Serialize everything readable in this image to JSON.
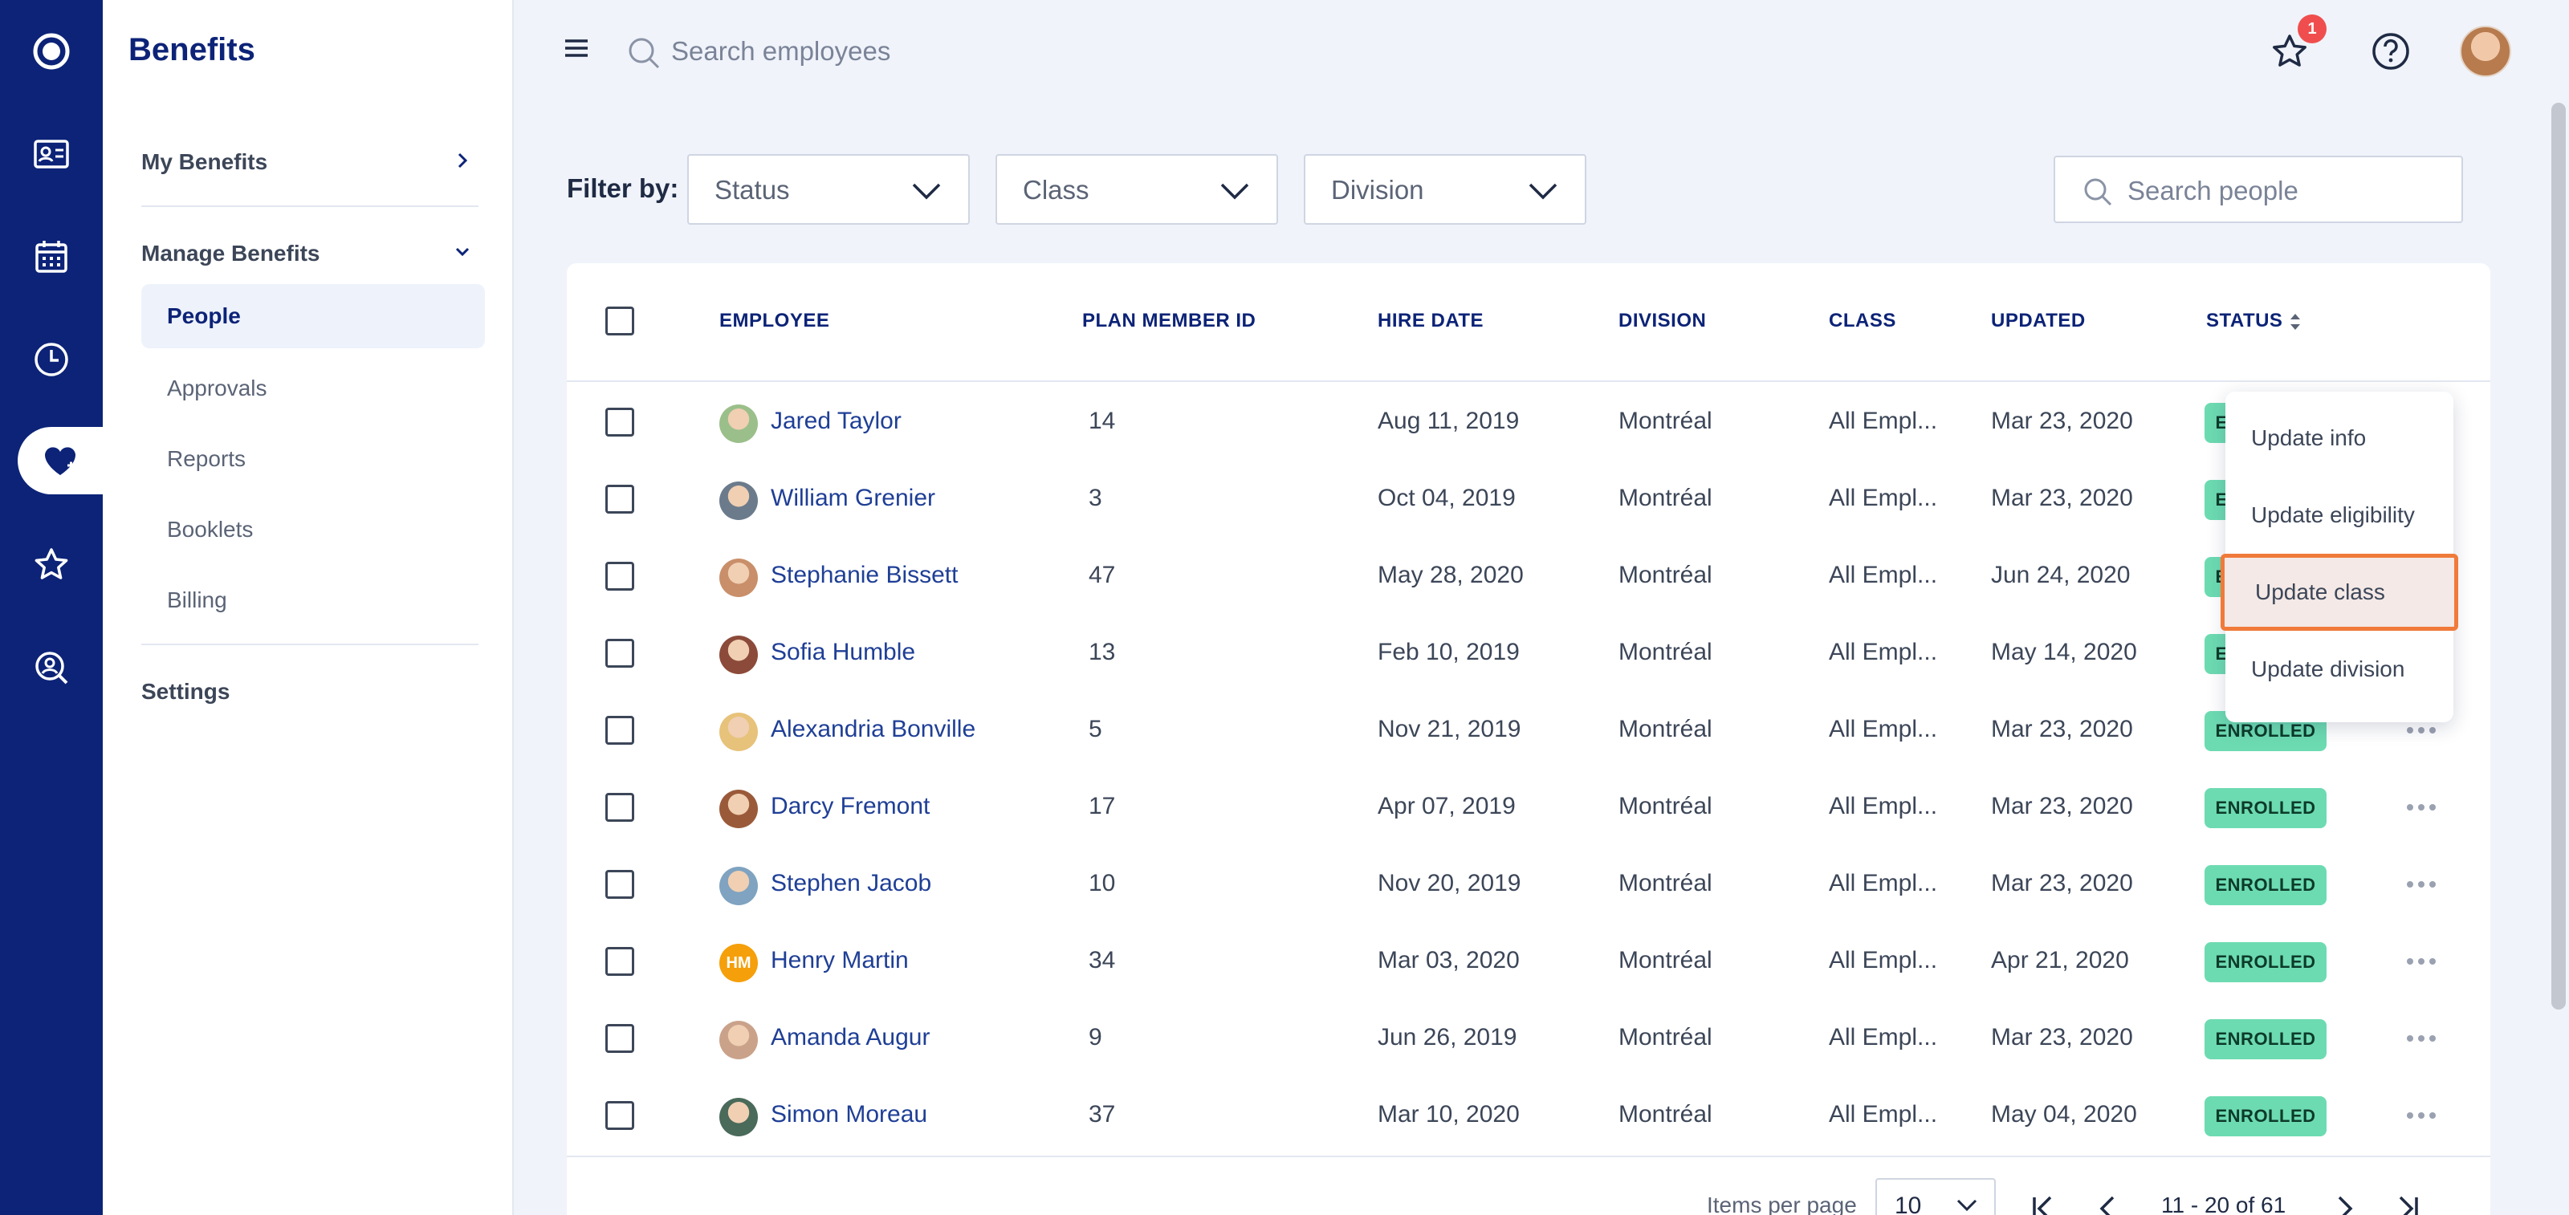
{
  "app": {
    "title": "Benefits"
  },
  "colors": {
    "brand": "#0c2377",
    "enrolled": "#6ddbb2",
    "badge": "#f04e4e",
    "highlight_border": "#f07a3a"
  },
  "rail": {
    "icons": [
      "app-logo-icon",
      "id-card-icon",
      "calendar-icon",
      "clock-icon",
      "heart-icon",
      "star-icon",
      "search-person-icon"
    ],
    "active": "heart-icon"
  },
  "subnav": {
    "title": "Benefits",
    "my_benefits": "My Benefits",
    "manage_benefits": "Manage Benefits",
    "items": [
      "People",
      "Approvals",
      "Reports",
      "Booklets",
      "Billing"
    ],
    "active_item": "People",
    "settings": "Settings"
  },
  "topbar": {
    "search_placeholder": "Search employees",
    "notification_count": "1"
  },
  "filters": {
    "label": "Filter by:",
    "status": "Status",
    "class": "Class",
    "division": "Division",
    "search_placeholder": "Search people"
  },
  "table": {
    "columns": [
      "EMPLOYEE",
      "PLAN MEMBER ID",
      "HIRE DATE",
      "DIVISION",
      "CLASS",
      "UPDATED",
      "STATUS"
    ],
    "rows": [
      {
        "name": "Jared Taylor",
        "id": "14",
        "hire": "Aug 11, 2019",
        "division": "Montréal",
        "class": "All Empl...",
        "updated": "Mar 23, 2020",
        "status": "ENROLLED"
      },
      {
        "name": "William Grenier",
        "id": "3",
        "hire": "Oct 04, 2019",
        "division": "Montréal",
        "class": "All Empl...",
        "updated": "Mar 23, 2020",
        "status": "ENROLLED"
      },
      {
        "name": "Stephanie Bissett",
        "id": "47",
        "hire": "May 28, 2020",
        "division": "Montréal",
        "class": "All Empl...",
        "updated": "Jun 24, 2020",
        "status": "ENROLLED"
      },
      {
        "name": "Sofia Humble",
        "id": "13",
        "hire": "Feb 10, 2019",
        "division": "Montréal",
        "class": "All Empl...",
        "updated": "May 14, 2020",
        "status": "ENROLLED"
      },
      {
        "name": "Alexandria Bonville",
        "id": "5",
        "hire": "Nov 21, 2019",
        "division": "Montréal",
        "class": "All Empl...",
        "updated": "Mar 23, 2020",
        "status": "ENROLLED"
      },
      {
        "name": "Darcy Fremont",
        "id": "17",
        "hire": "Apr 07, 2019",
        "division": "Montréal",
        "class": "All Empl...",
        "updated": "Mar 23, 2020",
        "status": "ENROLLED"
      },
      {
        "name": "Stephen Jacob",
        "id": "10",
        "hire": "Nov 20, 2019",
        "division": "Montréal",
        "class": "All Empl...",
        "updated": "Mar 23, 2020",
        "status": "ENROLLED"
      },
      {
        "name": "Henry Martin",
        "initials": "HM",
        "id": "34",
        "hire": "Mar 03, 2020",
        "division": "Montréal",
        "class": "All Empl...",
        "updated": "Apr 21, 2020",
        "status": "ENROLLED"
      },
      {
        "name": "Amanda Augur",
        "id": "9",
        "hire": "Jun 26, 2019",
        "division": "Montréal",
        "class": "All Empl...",
        "updated": "Mar 23, 2020",
        "status": "ENROLLED"
      },
      {
        "name": "Simon Moreau",
        "id": "37",
        "hire": "Mar 10, 2020",
        "division": "Montréal",
        "class": "All Empl...",
        "updated": "May 04, 2020",
        "status": "ENROLLED"
      }
    ]
  },
  "row_menu": {
    "items": [
      "Update info",
      "Update eligibility",
      "Update class",
      "Update division"
    ],
    "highlighted": "Update class"
  },
  "pagination": {
    "items_per_page_label": "Items per page",
    "items_per_page": "10",
    "range": "11 - 20 of 61"
  }
}
